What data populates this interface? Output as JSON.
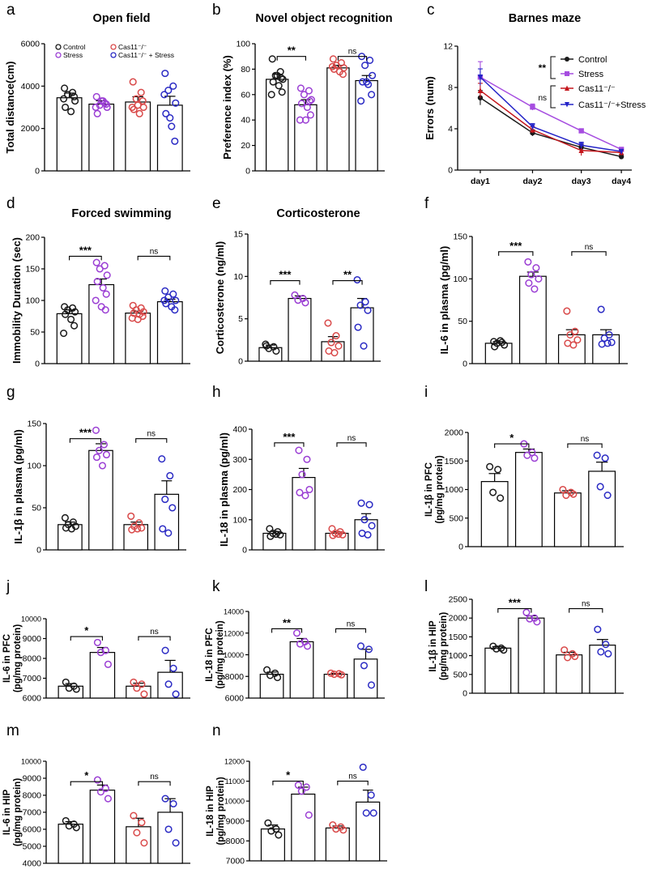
{
  "colors": {
    "control": "#1a1a1a",
    "stress": "#9b3fd4",
    "ko": "#d94a4a",
    "ko_stress": "#2b2bc4",
    "stress_line": "#a64de0",
    "ko_line": "#c4161c",
    "ko_stress_line": "#2424c8"
  },
  "chart_data": [
    {
      "panel": "a",
      "type": "bar",
      "title": "Open field",
      "ylabel": "Total distance(cm)",
      "ylim": [
        0,
        6000
      ],
      "yticks": [
        0,
        2000,
        4000,
        6000
      ],
      "groups": [
        "Control",
        "Stress",
        "Cas11-/-",
        "Cas11-/- + Stress"
      ],
      "legend": [
        "Control",
        "Stress",
        "Cas11⁻/⁻",
        "Cas11⁻/⁻ + Stress"
      ],
      "means": [
        3450,
        3150,
        3250,
        3100
      ],
      "sem": [
        220,
        160,
        250,
        420
      ],
      "points": [
        [
          3900,
          3700,
          3600,
          3300,
          3000,
          2800,
          3500,
          3400
        ],
        [
          3500,
          3200,
          3100,
          3000,
          2700,
          3300,
          3150,
          3000,
          3300
        ],
        [
          4200,
          3700,
          3400,
          3000,
          2900,
          2700,
          3300,
          3000,
          3100
        ],
        [
          4600,
          4000,
          3800,
          3200,
          2700,
          2100,
          1400,
          3600,
          2500
        ]
      ],
      "sig": []
    },
    {
      "panel": "b",
      "type": "bar",
      "title": "Novel object recognition",
      "ylabel": "Preference index (%)",
      "ylim": [
        0,
        100
      ],
      "yticks": [
        0,
        20,
        40,
        60,
        80,
        100
      ],
      "means": [
        72,
        52,
        81,
        71
      ],
      "sem": [
        4,
        4,
        2,
        4
      ],
      "points": [
        [
          88,
          78,
          75,
          72,
          70,
          67,
          62,
          60,
          75,
          73
        ],
        [
          65,
          63,
          60,
          56,
          53,
          50,
          44,
          40,
          40,
          55
        ],
        [
          88,
          85,
          83,
          81,
          80,
          78,
          76,
          82
        ],
        [
          90,
          87,
          83,
          75,
          70,
          68,
          60,
          55,
          70
        ]
      ],
      "sig": [
        {
          "g": [
            0,
            1
          ],
          "label": "**",
          "y": 90
        },
        {
          "g": [
            2,
            3
          ],
          "label": "ns",
          "y": 90
        }
      ]
    },
    {
      "panel": "c",
      "type": "line",
      "title": "Barnes maze",
      "ylabel": "Errors (num)",
      "ylim": [
        0,
        12
      ],
      "yticks": [
        0,
        4,
        8,
        12
      ],
      "categories": [
        "day1",
        "day2",
        "day3",
        "day4"
      ],
      "series": [
        {
          "name": "Control",
          "values": [
            7.0,
            3.6,
            2.2,
            1.3
          ],
          "err": [
            0.7,
            0.3,
            0.3,
            0.2
          ]
        },
        {
          "name": "Stress",
          "values": [
            9.0,
            6.1,
            3.8,
            2.0
          ],
          "err": [
            1.5,
            0.3,
            0.2,
            0.2
          ]
        },
        {
          "name": "Cas11-/-",
          "values": [
            7.7,
            3.9,
            1.9,
            1.7
          ],
          "err": [
            0.7,
            0.3,
            0.5,
            0.2
          ]
        },
        {
          "name": "Cas11-/-+Stress",
          "values": [
            9.0,
            4.2,
            2.4,
            1.8
          ],
          "err": [
            0.8,
            0.3,
            0.3,
            0.2
          ]
        }
      ],
      "legend": [
        "Control",
        "Stress",
        "Cas11⁻/⁻",
        "Cas11⁻/⁻+Stress"
      ],
      "sig_labels": [
        "**",
        "ns"
      ]
    },
    {
      "panel": "d",
      "type": "bar",
      "title": "Forced swimming",
      "ylabel": "Immobility Duration (sec)",
      "ylim": [
        0,
        200
      ],
      "yticks": [
        0,
        50,
        100,
        150,
        200
      ],
      "means": [
        79,
        125,
        80,
        98
      ],
      "sem": [
        6,
        9,
        3,
        4
      ],
      "points": [
        [
          90,
          88,
          85,
          82,
          78,
          70,
          60,
          48
        ],
        [
          160,
          155,
          150,
          140,
          130,
          120,
          110,
          100,
          90,
          85
        ],
        [
          92,
          88,
          85,
          82,
          80,
          78,
          75,
          72,
          70
        ],
        [
          115,
          110,
          105,
          100,
          95,
          90,
          85,
          100
        ]
      ],
      "sig": [
        {
          "g": [
            0,
            1
          ],
          "label": "***",
          "y": 170
        },
        {
          "g": [
            2,
            3
          ],
          "label": "ns",
          "y": 170
        }
      ]
    },
    {
      "panel": "e",
      "type": "bar",
      "title": "Corticosterone",
      "ylabel": "Corticosterone (ng/ml)",
      "ylim": [
        0,
        15
      ],
      "yticks": [
        0,
        5,
        10,
        15
      ],
      "means": [
        1.6,
        7.4,
        2.3,
        6.3
      ],
      "sem": [
        0.3,
        0.3,
        0.6,
        1.1
      ],
      "points": [
        [
          2.0,
          1.7,
          1.5,
          1.2,
          1.8
        ],
        [
          7.8,
          7.4,
          7.2,
          6.9
        ],
        [
          4.5,
          3.0,
          2.2,
          1.8,
          1.2,
          1.0
        ],
        [
          9.6,
          7.0,
          6.6,
          6.0,
          4.0,
          1.8
        ]
      ],
      "sig": [
        {
          "g": [
            0,
            1
          ],
          "label": "***",
          "y": 9.5
        },
        {
          "g": [
            2,
            3
          ],
          "label": "**",
          "y": 9.5
        }
      ]
    },
    {
      "panel": "f",
      "type": "bar",
      "title": "",
      "ylabel": "IL-6 in plasma (pg/ml)",
      "ylim": [
        0,
        150
      ],
      "yticks": [
        0,
        50,
        100,
        150
      ],
      "means": [
        24,
        103,
        34,
        34
      ],
      "sem": [
        2,
        5,
        6,
        6
      ],
      "points": [
        [
          26,
          25,
          24,
          22,
          20,
          27
        ],
        [
          120,
          113,
          105,
          100,
          95,
          88
        ],
        [
          62,
          38,
          34,
          28,
          24,
          22
        ],
        [
          64,
          34,
          30,
          25,
          23,
          24
        ]
      ],
      "sig": [
        {
          "g": [
            0,
            1
          ],
          "label": "***",
          "y": 132
        },
        {
          "g": [
            2,
            3
          ],
          "label": "ns",
          "y": 132
        }
      ]
    },
    {
      "panel": "g",
      "type": "bar",
      "title": "",
      "ylabel": "IL-1β in plasma (pg/ml)",
      "ylim": [
        0,
        150
      ],
      "yticks": [
        0,
        50,
        100,
        150
      ],
      "means": [
        30,
        118,
        30,
        66
      ],
      "sem": [
        3,
        8,
        3,
        16
      ],
      "points": [
        [
          38,
          33,
          30,
          28,
          26,
          25
        ],
        [
          142,
          125,
          118,
          113,
          110,
          100
        ],
        [
          40,
          32,
          28,
          26,
          24,
          25
        ],
        [
          108,
          88,
          60,
          50,
          25,
          20
        ]
      ],
      "sig": [
        {
          "g": [
            0,
            1
          ],
          "label": "***",
          "y": 132
        },
        {
          "g": [
            2,
            3
          ],
          "label": "ns",
          "y": 132
        }
      ]
    },
    {
      "panel": "h",
      "type": "bar",
      "title": "",
      "ylabel": "IL-18 in plasma (pg/ml)",
      "ylim": [
        0,
        400
      ],
      "yticks": [
        0,
        100,
        200,
        300,
        400
      ],
      "means": [
        55,
        240,
        55,
        100
      ],
      "sem": [
        6,
        30,
        5,
        20
      ],
      "points": [
        [
          70,
          60,
          55,
          50,
          45,
          52
        ],
        [
          330,
          300,
          250,
          200,
          190,
          180
        ],
        [
          70,
          60,
          55,
          50,
          48,
          52
        ],
        [
          155,
          150,
          100,
          80,
          55,
          50
        ]
      ],
      "sig": [
        {
          "g": [
            0,
            1
          ],
          "label": "***",
          "y": 355
        },
        {
          "g": [
            2,
            3
          ],
          "label": "ns",
          "y": 355
        }
      ]
    },
    {
      "panel": "i",
      "type": "bar",
      "title": "",
      "ylabel": "IL-1β in PFC|(pg/mg protein)",
      "ylim": [
        0,
        2000
      ],
      "yticks": [
        0,
        500,
        1000,
        1500,
        2000
      ],
      "means": [
        1140,
        1650,
        940,
        1320
      ],
      "sem": [
        140,
        60,
        40,
        160
      ],
      "points": [
        [
          1400,
          1350,
          950,
          850
        ],
        [
          1800,
          1650,
          1600,
          1550
        ],
        [
          1000,
          950,
          900,
          920
        ],
        [
          1600,
          1550,
          1050,
          900
        ]
      ],
      "sig": [
        {
          "g": [
            0,
            1
          ],
          "label": "*",
          "y": 1800
        },
        {
          "g": [
            2,
            3
          ],
          "label": "ns",
          "y": 1800
        }
      ]
    },
    {
      "panel": "j",
      "type": "bar",
      "title": "",
      "ylabel": "IL-6 in PFC|(pg/mg protein)",
      "ylim": [
        6000,
        10000
      ],
      "yticks": [
        6000,
        7000,
        8000,
        9000,
        10000
      ],
      "means": [
        6600,
        8300,
        6600,
        7300
      ],
      "sem": [
        130,
        250,
        150,
        600
      ],
      "points": [
        [
          6800,
          6600,
          6500,
          6450
        ],
        [
          8800,
          8400,
          8300,
          7700
        ],
        [
          6800,
          6700,
          6500,
          6200
        ],
        [
          8400,
          7500,
          6700,
          6200
        ]
      ],
      "sig": [
        {
          "g": [
            0,
            1
          ],
          "label": "*",
          "y": 9100
        },
        {
          "g": [
            2,
            3
          ],
          "label": "ns",
          "y": 9100
        }
      ]
    },
    {
      "panel": "k",
      "type": "bar",
      "title": "",
      "ylabel": "IL-18 in PFC|(pg/mg protein)",
      "ylim": [
        6000,
        14000
      ],
      "yticks": [
        6000,
        8000,
        10000,
        12000,
        14000
      ],
      "means": [
        8200,
        11200,
        8200,
        9600
      ],
      "sem": [
        200,
        300,
        80,
        900
      ],
      "points": [
        [
          8600,
          8300,
          8100,
          7900
        ],
        [
          12000,
          11200,
          11000,
          10800
        ],
        [
          8300,
          8250,
          8200,
          8150
        ],
        [
          10800,
          10500,
          9000,
          7200
        ]
      ],
      "sig": [
        {
          "g": [
            0,
            1
          ],
          "label": "**",
          "y": 12400
        },
        {
          "g": [
            2,
            3
          ],
          "label": "ns",
          "y": 12400
        }
      ]
    },
    {
      "panel": "l",
      "type": "bar",
      "title": "",
      "ylabel": "IL-1β in HIP|(pg/mg protein)",
      "ylim": [
        0,
        2500
      ],
      "yticks": [
        0,
        500,
        1000,
        1500,
        2000,
        2500
      ],
      "means": [
        1200,
        2000,
        1020,
        1280
      ],
      "sem": [
        40,
        60,
        70,
        150
      ],
      "points": [
        [
          1250,
          1200,
          1180,
          1150
        ],
        [
          2150,
          2000,
          1980,
          1900
        ],
        [
          1150,
          1050,
          950,
          980
        ],
        [
          1700,
          1300,
          1100,
          1050
        ]
      ],
      "sig": [
        {
          "g": [
            0,
            1
          ],
          "label": "***",
          "y": 2250
        },
        {
          "g": [
            2,
            3
          ],
          "label": "ns",
          "y": 2250
        }
      ]
    },
    {
      "panel": "m",
      "type": "bar",
      "title": "",
      "ylabel": "IL-6 in HIP|(pg/mg protein)",
      "ylim": [
        4000,
        10000
      ],
      "yticks": [
        4000,
        5000,
        6000,
        7000,
        8000,
        9000,
        10000
      ],
      "means": [
        6300,
        8300,
        6150,
        7000
      ],
      "sem": [
        150,
        300,
        500,
        800
      ],
      "points": [
        [
          6500,
          6300,
          6200,
          6100
        ],
        [
          8900,
          8400,
          8200,
          7800
        ],
        [
          6800,
          6400,
          5800,
          5200
        ],
        [
          7800,
          7500,
          6000,
          5200
        ]
      ],
      "sig": [
        {
          "g": [
            0,
            1
          ],
          "label": "*",
          "y": 8800
        },
        {
          "g": [
            2,
            3
          ],
          "label": "ns",
          "y": 8800
        }
      ]
    },
    {
      "panel": "n",
      "type": "bar",
      "title": "",
      "ylabel": "IL-18 in HIP|(pg/mg protein)",
      "ylim": [
        7000,
        12000
      ],
      "yticks": [
        7000,
        8000,
        9000,
        10000,
        11000,
        12000
      ],
      "means": [
        8600,
        10350,
        8650,
        9950
      ],
      "sem": [
        200,
        350,
        100,
        600
      ],
      "points": [
        [
          8900,
          8600,
          8500,
          8300
        ],
        [
          10800,
          10700,
          10500,
          9300
        ],
        [
          8800,
          8700,
          8600,
          8550
        ],
        [
          11700,
          10300,
          9400,
          9400
        ]
      ],
      "sig": [
        {
          "g": [
            0,
            1
          ],
          "label": "*",
          "y": 11000
        },
        {
          "g": [
            2,
            3
          ],
          "label": "ns",
          "y": 11000
        }
      ]
    }
  ]
}
